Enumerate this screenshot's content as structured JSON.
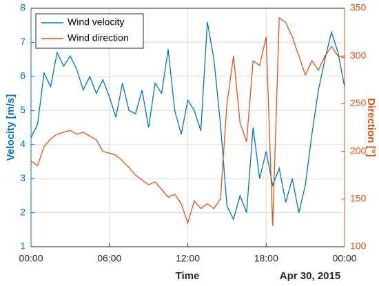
{
  "chart_data": {
    "type": "line",
    "xlabel": "Time",
    "date_label": "Apr 30, 2015",
    "ylabel": "Velocity [m/s]",
    "y2label": "Direction [°]",
    "x": [
      0,
      0.5,
      1,
      1.5,
      2,
      2.5,
      3,
      3.5,
      4,
      4.5,
      5,
      5.5,
      6,
      6.5,
      7,
      7.5,
      8,
      8.5,
      9,
      9.5,
      10,
      10.5,
      11,
      11.5,
      12,
      12.5,
      13,
      13.5,
      14,
      14.5,
      15,
      15.5,
      16,
      16.5,
      17,
      17.5,
      18,
      18.5,
      19,
      19.5,
      20,
      20.5,
      21,
      21.5,
      22,
      22.5,
      23,
      23.5,
      24
    ],
    "series": [
      {
        "name": "Wind velocity",
        "color": "#0072bd",
        "axis": "y",
        "values": [
          4.2,
          4.6,
          6.1,
          5.7,
          6.7,
          6.3,
          6.6,
          6.2,
          5.6,
          6.0,
          5.5,
          5.9,
          5.4,
          4.8,
          5.8,
          5.0,
          4.9,
          5.6,
          4.5,
          5.8,
          5.5,
          6.8,
          5.0,
          4.3,
          5.3,
          5.0,
          4.4,
          7.6,
          6.5,
          4.6,
          2.2,
          1.8,
          2.5,
          2.0,
          4.5,
          3.0,
          3.8,
          2.8,
          3.3,
          2.3,
          3.0,
          2.0,
          2.8,
          4.3,
          5.6,
          6.5,
          7.3,
          6.7,
          5.7
        ]
      },
      {
        "name": "Wind direction",
        "color": "#d95319",
        "axis": "y2",
        "values": [
          190,
          185,
          205,
          213,
          218,
          220,
          222,
          218,
          220,
          216,
          212,
          200,
          198,
          196,
          190,
          183,
          175,
          170,
          165,
          168,
          160,
          152,
          155,
          145,
          125,
          148,
          140,
          145,
          140,
          150,
          250,
          300,
          230,
          210,
          295,
          290,
          320,
          122,
          340,
          335,
          320,
          300,
          280,
          295,
          285,
          300,
          310,
          300,
          298
        ]
      }
    ],
    "xlim": [
      0,
      24
    ],
    "xticks": [
      {
        "value": 0,
        "label": "00:00"
      },
      {
        "value": 6,
        "label": "06:00"
      },
      {
        "value": 12,
        "label": "12:00"
      },
      {
        "value": 18,
        "label": "18:00"
      },
      {
        "value": 24,
        "label": "00:00"
      }
    ],
    "ylim": [
      1,
      8
    ],
    "yticks": [
      1,
      2,
      3,
      4,
      5,
      6,
      7,
      8
    ],
    "y2lim": [
      100,
      350
    ],
    "y2ticks": [
      100,
      150,
      200,
      250,
      300,
      350
    ],
    "grid": true,
    "legend": "northwest"
  }
}
